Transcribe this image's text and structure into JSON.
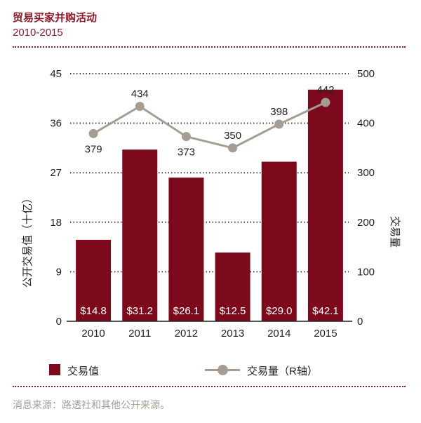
{
  "header": {
    "title": "贸易买家并购活动",
    "subtitle": "2010-2015"
  },
  "legend": {
    "bar_label": "交易值",
    "line_label": "交易量（R轴）"
  },
  "source": "消息来源：路透社和其他公开来源。",
  "colors": {
    "bar": "#7d0a1c",
    "line": "#a59d94",
    "accent": "#8a1c2b"
  },
  "chart_data": {
    "type": "bar",
    "categories": [
      "2010",
      "2011",
      "2012",
      "2013",
      "2014",
      "2015"
    ],
    "series": [
      {
        "name": "交易值",
        "type": "bar",
        "axis": "left",
        "values": [
          14.8,
          31.2,
          26.1,
          12.5,
          29.0,
          42.1
        ],
        "labels": [
          "$14.8",
          "$31.2",
          "$26.1",
          "$12.5",
          "$29.0",
          "$42.1"
        ]
      },
      {
        "name": "交易量（R轴）",
        "type": "line",
        "axis": "right",
        "values": [
          379,
          434,
          373,
          350,
          398,
          442
        ],
        "labels": [
          "379",
          "434",
          "373",
          "350",
          "398",
          "442"
        ]
      }
    ],
    "ylabel": "公开交易值（十亿）",
    "y2label": "交易量",
    "ylim": [
      0,
      45
    ],
    "yticks": [
      0,
      9,
      18,
      27,
      36,
      45
    ],
    "y2lim": [
      0,
      500
    ],
    "y2ticks": [
      0,
      100,
      200,
      300,
      400,
      500
    ],
    "grid": "dotted horizontal"
  }
}
